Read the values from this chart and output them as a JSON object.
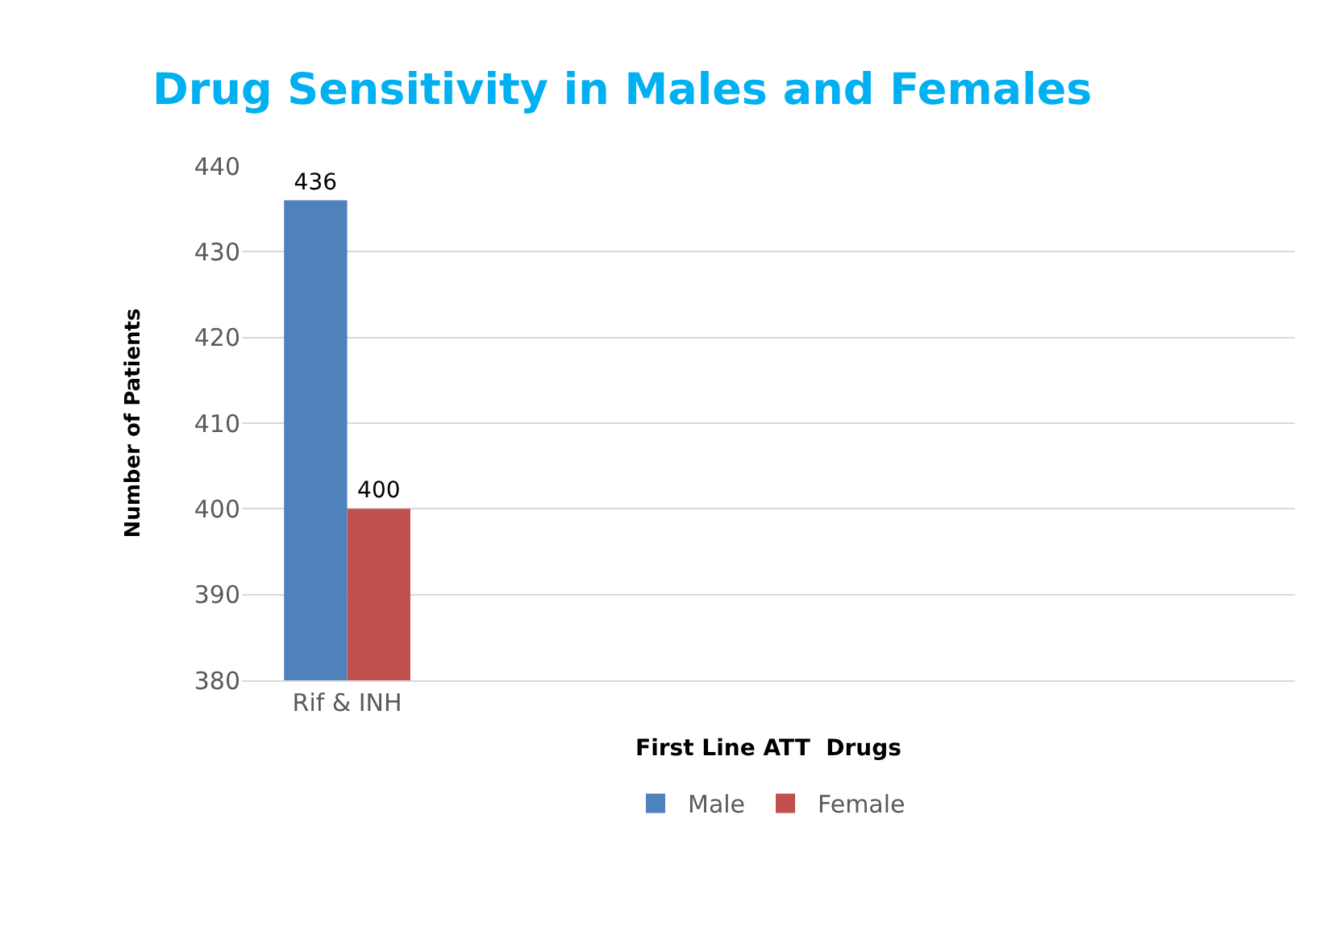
{
  "chart_data": {
    "type": "bar",
    "title": "Drug Sensitivity in Males and Females",
    "xlabel": "First Line ATT  Drugs",
    "ylabel": "Number of Patients",
    "categories": [
      "Rif & INH",
      null,
      null,
      null,
      null
    ],
    "series": [
      {
        "name": "Male",
        "color": "#4f81bd",
        "values": [
          436,
          null,
          null,
          null,
          null
        ]
      },
      {
        "name": "Female",
        "color": "#c0504d",
        "values": [
          400,
          null,
          null,
          null,
          null
        ]
      }
    ],
    "ylim": [
      380,
      440
    ],
    "yticks": [
      380,
      390,
      400,
      410,
      420,
      430,
      440
    ],
    "grid": "y",
    "legend": "bottom",
    "data_labels": true
  }
}
